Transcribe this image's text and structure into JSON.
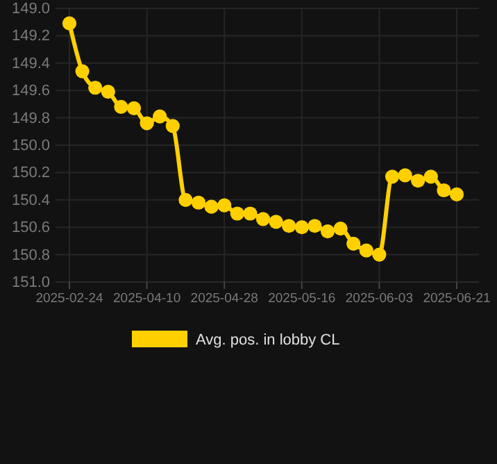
{
  "chart_data": {
    "type": "line",
    "categories": [
      "2025-02-24",
      null,
      null,
      null,
      null,
      null,
      "2025-04-10",
      null,
      null,
      null,
      null,
      null,
      "2025-04-28",
      null,
      null,
      null,
      null,
      null,
      "2025-05-16",
      null,
      null,
      null,
      null,
      null,
      "2025-06-03",
      null,
      null,
      null,
      null,
      null,
      "2025-06-21"
    ],
    "series": [
      {
        "name": "Avg. pos. in lobby CL",
        "color": "#ffd000",
        "values": [
          149.11,
          149.46,
          149.58,
          149.61,
          149.72,
          149.73,
          149.84,
          149.79,
          149.86,
          150.4,
          150.42,
          150.45,
          150.44,
          150.5,
          150.5,
          150.54,
          150.56,
          150.59,
          150.6,
          150.59,
          150.63,
          150.61,
          150.72,
          150.77,
          150.8,
          150.23,
          150.22,
          150.26,
          150.23,
          150.33,
          150.36
        ]
      }
    ],
    "ylim": [
      151.0,
      149.0
    ],
    "yticks": [
      {
        "value": 149.0,
        "label": "149.0"
      },
      149.2,
      149.4,
      149.6,
      149.8,
      {
        "value": 150.0,
        "label": "150.0"
      },
      150.2,
      150.4,
      150.6,
      150.8,
      {
        "value": 151.0,
        "label": "151.0"
      }
    ],
    "grid": true,
    "legend": "bottom",
    "marker": "circle",
    "line_style": "solid"
  }
}
